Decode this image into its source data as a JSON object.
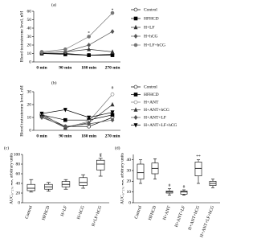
{
  "chart_data": [
    {
      "type": "line",
      "label": "(a)",
      "ylabel": "Blood testosterone level, nM",
      "categories": [
        "0 min",
        "90 min",
        "180 min",
        "270 min"
      ],
      "ylim": [
        0,
        60
      ],
      "yticks": [
        0,
        10,
        20,
        30,
        40,
        50,
        60
      ],
      "series": [
        {
          "name": "Control",
          "color": "#000000",
          "marker": "circle-open",
          "values": [
            10,
            10,
            8,
            9
          ]
        },
        {
          "name": "HFHCD",
          "color": "#000000",
          "marker": "square",
          "values": [
            10,
            9,
            8,
            8
          ]
        },
        {
          "name": "H+LF",
          "color": "#333333",
          "marker": "triangle",
          "values": [
            11,
            12,
            15,
            12
          ]
        },
        {
          "name": "H+hCG",
          "color": "#555555",
          "marker": "diamond",
          "values": [
            11,
            12,
            20,
            36
          ]
        },
        {
          "name": "H+LF+hCG",
          "color": "#777777",
          "marker": "circle",
          "values": [
            12,
            15,
            30,
            58
          ]
        }
      ],
      "annotations": [
        {
          "text": "*",
          "category": "180 min",
          "y": 34
        },
        {
          "text": "*",
          "category": "270 min",
          "y": 61
        }
      ]
    },
    {
      "type": "line",
      "label": "(b)",
      "ylabel": "Blood testosterone level, nM",
      "categories": [
        "0 min",
        "90 min",
        "180 min",
        "270 min"
      ],
      "ylim": [
        0,
        30
      ],
      "yticks": [
        0,
        10,
        20,
        30
      ],
      "series": [
        {
          "name": "Control",
          "color": "#000000",
          "marker": "circle-open",
          "values": [
            12,
            3,
            3,
            10
          ]
        },
        {
          "name": "HFHCD",
          "color": "#000000",
          "marker": "square",
          "values": [
            12,
            8,
            8,
            12
          ]
        },
        {
          "name": "H+ANT",
          "color": "#777777",
          "marker": "circle-open",
          "values": [
            13,
            2,
            7,
            28
          ]
        },
        {
          "name": "H+ANT+hCG",
          "color": "#333333",
          "marker": "triangle",
          "values": [
            11,
            2,
            6,
            20
          ]
        },
        {
          "name": "H+ANT+LF",
          "color": "#555555",
          "marker": "diamond",
          "values": [
            10,
            3,
            5,
            8
          ]
        },
        {
          "name": "H+ANT+LF+hCG",
          "color": "#000000",
          "marker": "triangle-down",
          "values": [
            13,
            16,
            10,
            14
          ]
        }
      ],
      "annotations": [
        {
          "text": "#",
          "category": "270 min",
          "y": 33
        }
      ]
    },
    {
      "type": "box",
      "label": "(c)",
      "ylabel": "AUC₀₋₂₇₀ ₘᵢₙ, arbitrary units",
      "categories": [
        "Control",
        "HFHCD",
        "H+LF",
        "H+hCG",
        "H+LF+hCG"
      ],
      "ylim": [
        0,
        100
      ],
      "yticks": [
        0,
        20,
        40,
        60,
        80,
        100
      ],
      "boxes": [
        {
          "min": 22,
          "q1": 25,
          "median": 30,
          "q3": 38,
          "max": 48
        },
        {
          "min": 24,
          "q1": 28,
          "median": 33,
          "q3": 38,
          "max": 42
        },
        {
          "min": 28,
          "q1": 33,
          "median": 38,
          "q3": 44,
          "max": 48
        },
        {
          "min": 30,
          "q1": 36,
          "median": 42,
          "q3": 52,
          "max": 58
        },
        {
          "min": 55,
          "q1": 68,
          "median": 80,
          "q3": 88,
          "max": 92
        }
      ],
      "annotations": [
        {
          "text": "#",
          "category": "H+LF+hCG",
          "y": 100
        },
        {
          "text": "*",
          "category": "H+LF+hCG",
          "y": 95
        }
      ]
    },
    {
      "type": "box",
      "label": "(d)",
      "ylabel": "AUC₀₋₂₇₀ ₘᵢₙ, arbitrary units",
      "categories": [
        "Control",
        "HFHCD",
        "H+ANT",
        "H+ANT+LF",
        "H+ANT+hCG",
        "H+ANT+LF+hCG"
      ],
      "ylim": [
        0,
        45
      ],
      "yticks": [
        0,
        10,
        20,
        30,
        40
      ],
      "boxes": [
        {
          "min": 18,
          "q1": 22,
          "median": 28,
          "q3": 36,
          "max": 40
        },
        {
          "min": 22,
          "q1": 27,
          "median": 32,
          "q3": 37,
          "max": 41
        },
        {
          "min": 7,
          "q1": 9,
          "median": 10,
          "q3": 11,
          "max": 13
        },
        {
          "min": 7,
          "q1": 8,
          "median": 10,
          "q3": 11,
          "max": 12
        },
        {
          "min": 18,
          "q1": 25,
          "median": 32,
          "q3": 38,
          "max": 40
        },
        {
          "min": 14,
          "q1": 16,
          "median": 18,
          "q3": 20,
          "max": 22
        }
      ],
      "annotations": [
        {
          "text": "#",
          "category": "H+ANT",
          "y": 16
        },
        {
          "text": "#",
          "category": "H+ANT+LF",
          "y": 15
        },
        {
          "text": "**",
          "category": "H+ANT+hCG",
          "y": 43
        }
      ]
    }
  ]
}
